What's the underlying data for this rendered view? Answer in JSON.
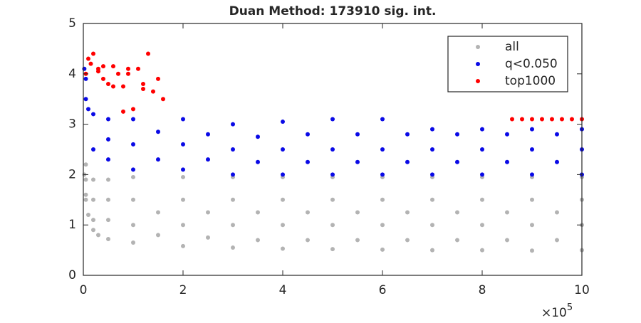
{
  "chart_data": {
    "type": "scatter",
    "title": "Duan Method: 173910 sig. int.",
    "x_multiplier": {
      "base": "×10",
      "exponent": "5"
    },
    "xlim": [
      0,
      10
    ],
    "xticks": [
      0,
      2,
      4,
      6,
      8,
      10
    ],
    "ylim": [
      0,
      5
    ],
    "yticks": [
      0,
      1,
      2,
      3,
      4,
      5
    ],
    "grid": false,
    "legend": "northeast",
    "series": [
      {
        "name": "all",
        "color": "#b3b3b3",
        "x": [
          0.02,
          0.05,
          0.1,
          0.2,
          0.3,
          0.5,
          1,
          2,
          3,
          4,
          5,
          6,
          7,
          8,
          9,
          10,
          0.05,
          0.2,
          0.5,
          1,
          2,
          3,
          4,
          5,
          6,
          7,
          8,
          9,
          10,
          0.05,
          0.2,
          0.5,
          1,
          2,
          3,
          4,
          5,
          6,
          7,
          8,
          9,
          10,
          0.05,
          0.2,
          0.5,
          1,
          2,
          3,
          4,
          5,
          6,
          7,
          8,
          9,
          10,
          1.5,
          2.5,
          3.5,
          4.5,
          5.5,
          6.5,
          7.5,
          8.5,
          9.5,
          1.5,
          2.5,
          3.5,
          4.5,
          5.5,
          6.5,
          7.5,
          8.5,
          9.5
        ],
        "y": [
          2.0,
          1.5,
          1.2,
          0.9,
          0.8,
          0.72,
          0.65,
          0.58,
          0.55,
          0.53,
          0.52,
          0.51,
          0.5,
          0.5,
          0.49,
          0.5,
          1.9,
          1.9,
          1.9,
          1.95,
          1.95,
          1.95,
          1.95,
          1.95,
          1.95,
          1.95,
          1.95,
          1.95,
          1.95,
          1.6,
          1.5,
          1.5,
          1.5,
          1.5,
          1.5,
          1.5,
          1.5,
          1.5,
          1.5,
          1.5,
          1.5,
          1.5,
          2.2,
          1.1,
          1.1,
          1.0,
          1.0,
          1.0,
          1.0,
          1.0,
          1.0,
          1.0,
          1.0,
          1.0,
          1.0,
          0.8,
          0.75,
          0.7,
          0.7,
          0.7,
          0.7,
          0.7,
          0.7,
          0.7,
          1.25,
          1.25,
          1.25,
          1.25,
          1.25,
          1.25,
          1.25,
          1.25,
          1.25
        ]
      },
      {
        "name": "q<0.050",
        "color": "#0a0ae6",
        "x": [
          0.02,
          0.05,
          0.05,
          0.1,
          0.2,
          0.2,
          0.5,
          0.5,
          0.5,
          1,
          1,
          1,
          2,
          2,
          2,
          3,
          3,
          3,
          4,
          4,
          4,
          5,
          5,
          5,
          6,
          6,
          6,
          7,
          7,
          7,
          8,
          8,
          8,
          9,
          9,
          9,
          10,
          10,
          10,
          1.5,
          2.5,
          3.5,
          4.5,
          5.5,
          6.5,
          7.5,
          8.5,
          9.5,
          1.5,
          2.5,
          3.5,
          4.5,
          5.5,
          6.5,
          7.5,
          8.5,
          9.5
        ],
        "y": [
          4.1,
          3.9,
          3.5,
          3.3,
          3.2,
          2.5,
          3.1,
          2.3,
          2.7,
          3.1,
          2.1,
          2.6,
          3.1,
          2.1,
          2.6,
          3.0,
          2.0,
          2.5,
          3.05,
          2.0,
          2.5,
          3.1,
          2.0,
          2.5,
          3.1,
          2.0,
          2.5,
          2.9,
          2.0,
          2.5,
          2.9,
          2.0,
          2.5,
          2.9,
          2.0,
          2.5,
          2.9,
          2.0,
          2.5,
          2.85,
          2.8,
          2.75,
          2.8,
          2.8,
          2.8,
          2.8,
          2.8,
          2.8,
          2.3,
          2.3,
          2.25,
          2.25,
          2.25,
          2.25,
          2.25,
          2.25,
          2.25
        ]
      },
      {
        "name": "top1000",
        "color": "#ff0000",
        "x": [
          0.05,
          0.1,
          0.15,
          0.2,
          0.3,
          0.4,
          0.5,
          0.6,
          0.7,
          0.8,
          0.9,
          1.0,
          1.1,
          1.2,
          1.3,
          1.4,
          1.5,
          1.6,
          0.4,
          0.8,
          1.2,
          0.9,
          0.3,
          0.6,
          8.6,
          8.8,
          9.0,
          9.2,
          9.4,
          9.6,
          9.8,
          10
        ],
        "y": [
          4.0,
          4.3,
          4.2,
          4.4,
          4.1,
          4.15,
          3.8,
          4.15,
          4.0,
          3.75,
          4.1,
          3.3,
          4.1,
          3.8,
          4.4,
          3.65,
          3.9,
          3.5,
          3.9,
          3.25,
          3.7,
          4.0,
          4.05,
          3.75,
          3.1,
          3.1,
          3.1,
          3.1,
          3.1,
          3.1,
          3.1,
          3.1
        ]
      }
    ]
  }
}
